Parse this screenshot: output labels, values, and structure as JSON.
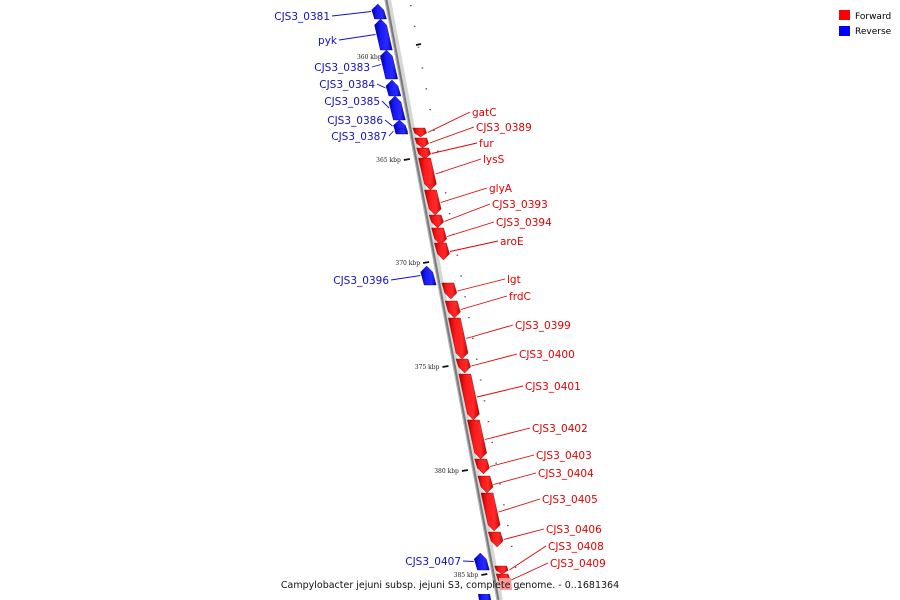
{
  "caption": "Campylobacter jejuni subsp. jejuni S3, complete genome. - 0..1681364",
  "legend": {
    "forward_label": "Forward",
    "reverse_label": "Reverse",
    "forward_color": "#ff0000",
    "reverse_color": "#0000ff"
  },
  "axis_ticks": [
    "360 kbp",
    "365 kbp",
    "370 kbp",
    "375 kbp",
    "380 kbp",
    "385 kbp"
  ],
  "reverse_genes": [
    "CJS3_0381",
    "pyk",
    "CJS3_0383",
    "CJS3_0384",
    "CJS3_0385",
    "CJS3_0386",
    "CJS3_0387",
    "CJS3_0396",
    "CJS3_0407"
  ],
  "forward_genes": [
    "gatC",
    "CJS3_0389",
    "fur",
    "lysS",
    "glyA",
    "CJS3_0393",
    "CJS3_0394",
    "aroE",
    "lgt",
    "frdC",
    "CJS3_0399",
    "CJS3_0400",
    "CJS3_0401",
    "CJS3_0402",
    "CJS3_0403",
    "CJS3_0404",
    "CJS3_0405",
    "CJS3_0406",
    "CJS3_0408",
    "CJS3_0409"
  ]
}
